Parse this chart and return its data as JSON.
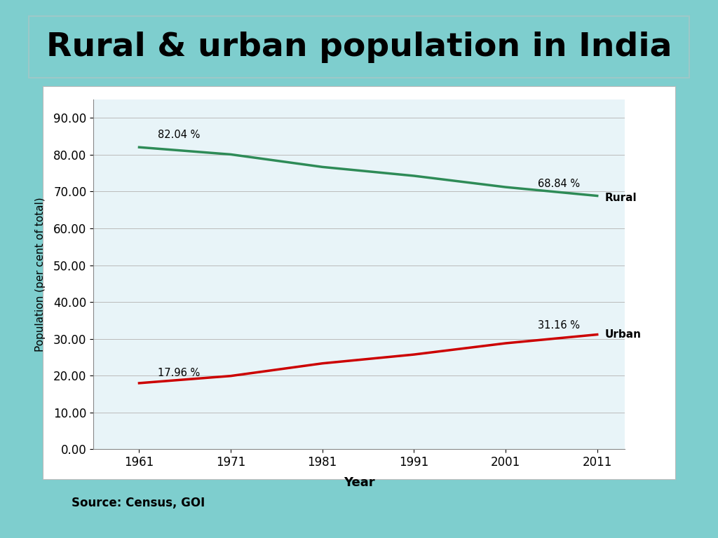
{
  "title": "Rural & urban population in India",
  "title_color": "#000000",
  "title_fontsize": 34,
  "xlabel": "Year",
  "ylabel": "Population (per cent of total)",
  "source": "Source: Census, GOI",
  "years": [
    1961,
    1971,
    1981,
    1991,
    2001,
    2011
  ],
  "rural": [
    82.04,
    80.09,
    76.68,
    74.27,
    71.21,
    68.84
  ],
  "urban": [
    17.96,
    19.91,
    23.32,
    25.73,
    28.79,
    31.16
  ],
  "rural_color": "#2E8B57",
  "urban_color": "#CC0000",
  "rural_label": "Rural",
  "urban_label": "Urban",
  "rural_start_annotation": "82.04 %",
  "rural_end_annotation": "68.84 %",
  "urban_start_annotation": "17.96 %",
  "urban_end_annotation": "31.16 %",
  "ylim": [
    0,
    95
  ],
  "yticks": [
    0.0,
    10.0,
    20.0,
    30.0,
    40.0,
    50.0,
    60.0,
    70.0,
    80.0,
    90.0
  ],
  "outer_background": "#7ECECE",
  "chart_bg": "#FFFFFF",
  "title_box_bg": "#7ECECE",
  "plot_area_bg": "#E8F4F8",
  "linewidth": 2.5,
  "title_box_edge": "#9DC8C8"
}
